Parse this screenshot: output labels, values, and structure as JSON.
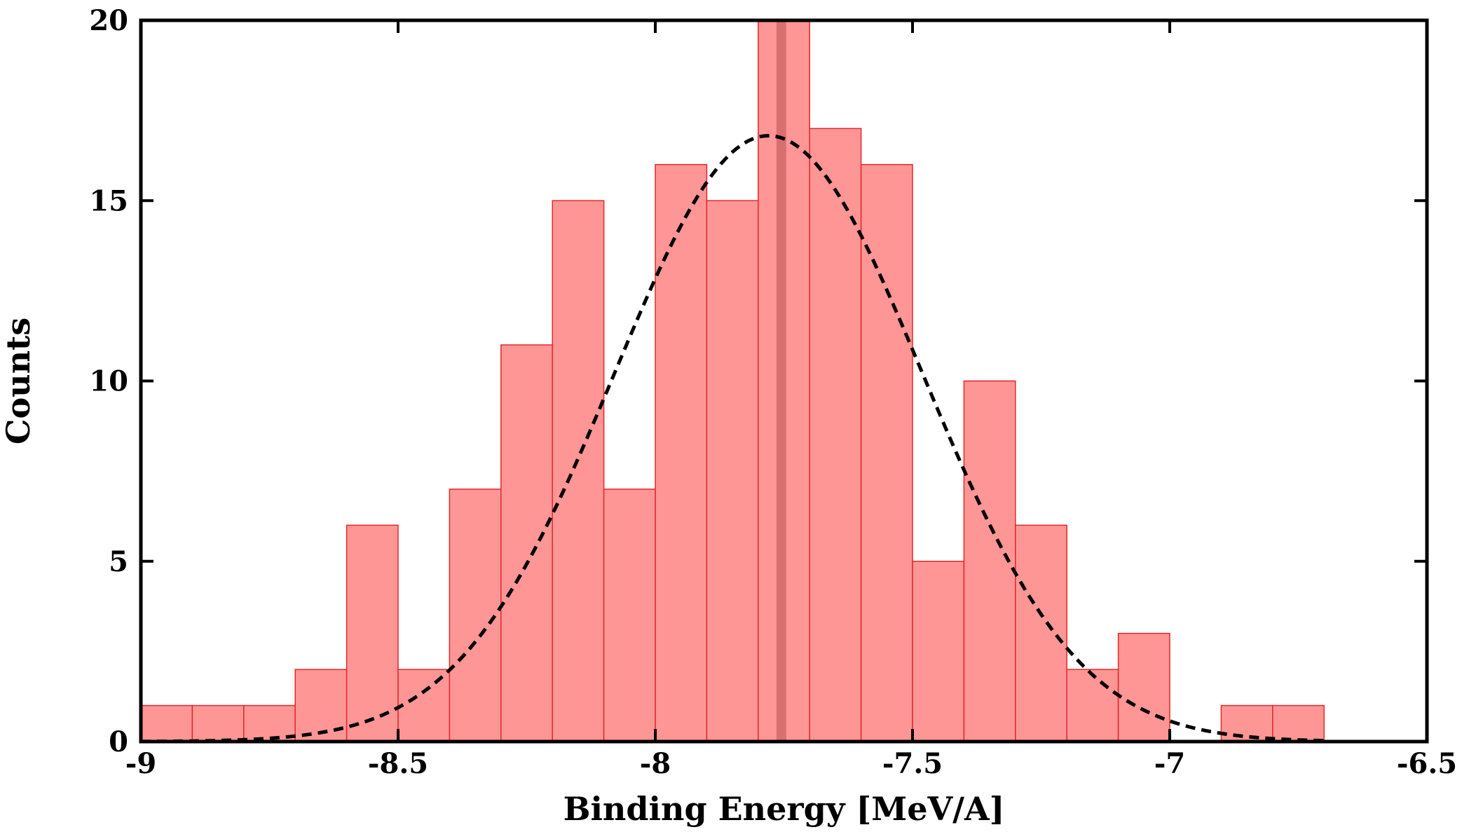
{
  "chart_data": {
    "type": "bar",
    "title": "",
    "xlabel": "Binding Energy [MeV/A]",
    "ylabel": "Counts",
    "xlim": [
      -9,
      -6.5
    ],
    "ylim": [
      0,
      20
    ],
    "x_ticks": [
      "-9",
      "-8.5",
      "-8",
      "-7.5",
      "-7",
      "-6.5"
    ],
    "y_ticks": [
      "0",
      "5",
      "10",
      "15",
      "20"
    ],
    "grid": false,
    "legend": "none",
    "bin_width": 0.1,
    "bins": [
      {
        "start": -9.0,
        "count": 1
      },
      {
        "start": -8.9,
        "count": 1
      },
      {
        "start": -8.8,
        "count": 1
      },
      {
        "start": -8.7,
        "count": 2
      },
      {
        "start": -8.6,
        "count": 6
      },
      {
        "start": -8.5,
        "count": 2
      },
      {
        "start": -8.4,
        "count": 7
      },
      {
        "start": -8.3,
        "count": 11
      },
      {
        "start": -8.2,
        "count": 15
      },
      {
        "start": -8.1,
        "count": 7
      },
      {
        "start": -8.0,
        "count": 16
      },
      {
        "start": -7.9,
        "count": 15
      },
      {
        "start": -7.8,
        "count": 20
      },
      {
        "start": -7.7,
        "count": 17
      },
      {
        "start": -7.6,
        "count": 16
      },
      {
        "start": -7.5,
        "count": 5
      },
      {
        "start": -7.4,
        "count": 10
      },
      {
        "start": -7.3,
        "count": 6
      },
      {
        "start": -7.2,
        "count": 2
      },
      {
        "start": -7.1,
        "count": 3
      },
      {
        "start": -7.0,
        "count": 0
      },
      {
        "start": -6.9,
        "count": 1
      },
      {
        "start": -6.8,
        "count": 1
      }
    ],
    "gaussian_fit": {
      "amplitude": 16.8,
      "mean": -7.78,
      "sigma": 0.3,
      "style": "dashed"
    },
    "marker_line_x": -7.755,
    "colors": {
      "bar_fill": "#ff9696",
      "bar_edge": "#e0292b",
      "fit_line": "#000000",
      "marker_line": "#d97070"
    }
  }
}
